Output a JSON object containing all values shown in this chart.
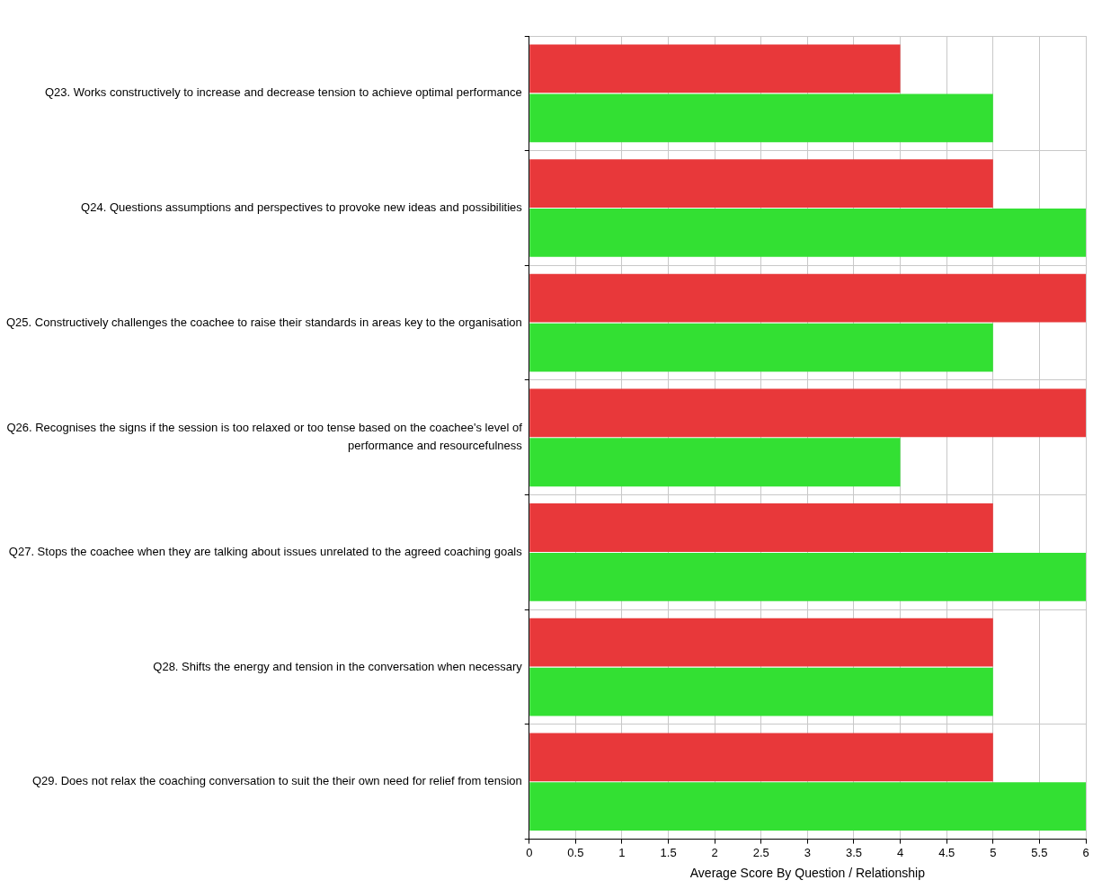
{
  "chart_data": {
    "type": "bar",
    "orientation": "horizontal",
    "xlabel": "Average Score By Question / Relationship",
    "categories": [
      "Q23. Works constructively to increase and decrease tension to achieve optimal performance",
      "Q24. Questions assumptions and perspectives to provoke new ideas and possibilities",
      "Q25. Constructively challenges the coachee to raise their standards in areas key to the organisation",
      "Q26. Recognises the signs if the session is too relaxed or too tense based on the coachee's level of performance and resourcefulness",
      "Q27. Stops the coachee when they are talking about issues unrelated to the agreed coaching goals",
      "Q28. Shifts the energy and tension in the conversation when necessary",
      "Q29. Does not relax the coaching conversation to suit the their own need for relief from tension"
    ],
    "series": [
      {
        "color": "#e8383a",
        "values": [
          4,
          5,
          6,
          6,
          5,
          5,
          5
        ]
      },
      {
        "color": "#33e033",
        "values": [
          5,
          6,
          5,
          4,
          6,
          5,
          6
        ]
      }
    ],
    "xlim": [
      0,
      6
    ],
    "xticks": [
      0,
      0.5,
      1,
      1.5,
      2,
      2.5,
      3,
      3.5,
      4,
      4.5,
      5,
      5.5,
      6
    ],
    "grid": true,
    "legend": false
  }
}
